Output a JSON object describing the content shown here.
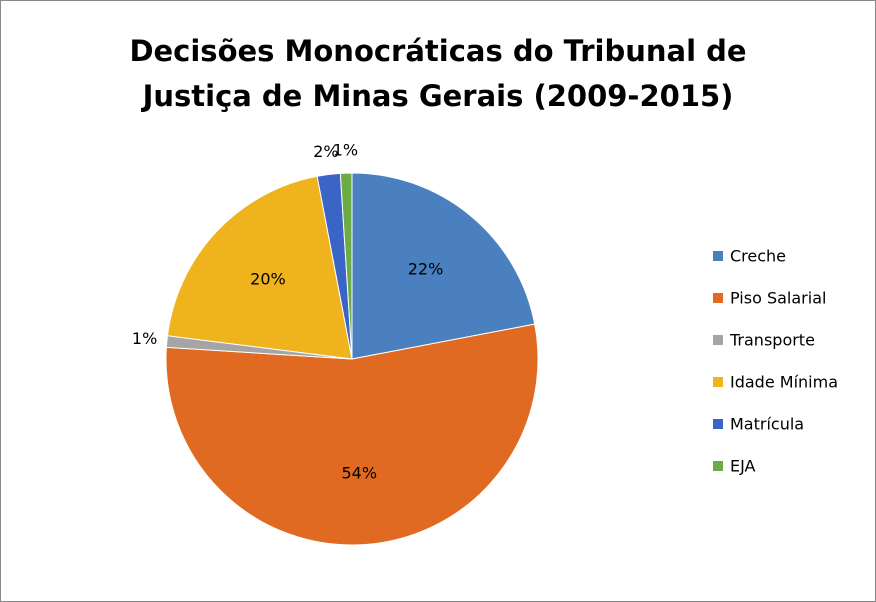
{
  "chart_data": {
    "type": "pie",
    "title": "Decisões Monocráticas do Tribunal de Justiça de Minas Gerais (2009-2015)",
    "categories": [
      "Creche",
      "Piso Salarial",
      "Transporte",
      "Idade Mínima",
      "Matrícula",
      "EJA"
    ],
    "values": [
      22,
      54,
      1,
      20,
      2,
      1
    ],
    "value_labels": [
      "22%",
      "54%",
      "1%",
      "20%",
      "2%",
      "1%"
    ],
    "colors": [
      "#4a80c0",
      "#e06a22",
      "#a5a5a5",
      "#efb31e",
      "#3a64c6",
      "#6cab45"
    ],
    "legend": "right"
  }
}
